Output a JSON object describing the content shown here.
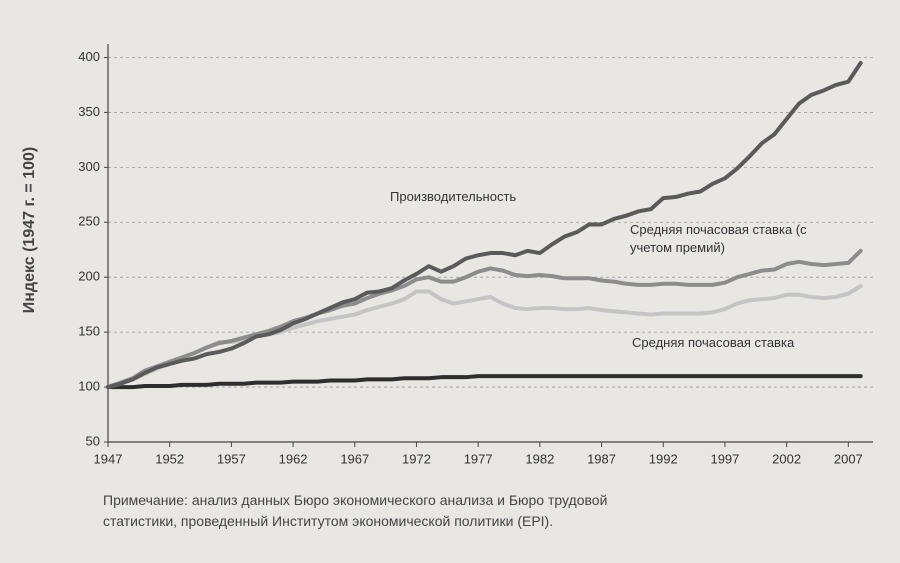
{
  "chart_data": {
    "type": "line",
    "ylabel": "Индекс (1947 г. = 100)",
    "x": [
      1947,
      1948,
      1949,
      1950,
      1951,
      1952,
      1953,
      1954,
      1955,
      1956,
      1957,
      1958,
      1959,
      1960,
      1961,
      1962,
      1963,
      1964,
      1965,
      1966,
      1967,
      1968,
      1969,
      1970,
      1971,
      1972,
      1973,
      1974,
      1975,
      1976,
      1977,
      1978,
      1979,
      1980,
      1981,
      1982,
      1983,
      1984,
      1985,
      1986,
      1987,
      1988,
      1989,
      1990,
      1991,
      1992,
      1993,
      1994,
      1995,
      1996,
      1997,
      1998,
      1999,
      2000,
      2001,
      2002,
      2003,
      2004,
      2005,
      2006,
      2007,
      2008
    ],
    "series": [
      {
        "name": "Производительность",
        "color": "#5a5a5a",
        "values": [
          100,
          103,
          107,
          113,
          118,
          121,
          124,
          126,
          130,
          132,
          135,
          140,
          146,
          148,
          152,
          158,
          162,
          167,
          172,
          177,
          180,
          186,
          187,
          190,
          197,
          203,
          210,
          205,
          210,
          217,
          220,
          222,
          222,
          220,
          224,
          222,
          230,
          237,
          241,
          248,
          248,
          253,
          256,
          260,
          262,
          272,
          273,
          276,
          278,
          285,
          290,
          299,
          310,
          322,
          330,
          344,
          358,
          366,
          370,
          375,
          378,
          395
        ]
      },
      {
        "name": "Средняя почасовая ставка (с учетом премий)",
        "color": "#8c8c8c",
        "values": [
          100,
          104,
          108,
          115,
          119,
          123,
          127,
          131,
          136,
          140,
          142,
          145,
          148,
          151,
          155,
          160,
          163,
          167,
          170,
          174,
          176,
          181,
          185,
          188,
          192,
          198,
          200,
          196,
          196,
          200,
          205,
          208,
          206,
          202,
          201,
          202,
          201,
          199,
          199,
          199,
          197,
          196,
          194,
          193,
          193,
          194,
          194,
          193,
          193,
          193,
          195,
          200,
          203,
          206,
          207,
          212,
          214,
          212,
          211,
          212,
          213,
          224
        ]
      },
      {
        "name": "Средняя почасовая ставка",
        "color": "#c4c4c4",
        "values": [
          100,
          103,
          107,
          112,
          117,
          121,
          127,
          131,
          136,
          141,
          141,
          143,
          147,
          148,
          150,
          154,
          157,
          160,
          162,
          164,
          166,
          170,
          173,
          176,
          180,
          187,
          187,
          180,
          176,
          178,
          180,
          182,
          176,
          172,
          171,
          172,
          172,
          171,
          171,
          172,
          170,
          169,
          168,
          167,
          166,
          167,
          167,
          167,
          167,
          168,
          171,
          176,
          179,
          180,
          181,
          184,
          184,
          182,
          181,
          182,
          185,
          192
        ]
      },
      {
        "color": "#2e2e2e",
        "values": [
          100,
          100,
          100,
          101,
          101,
          101,
          102,
          102,
          102,
          103,
          103,
          103,
          104,
          104,
          104,
          105,
          105,
          105,
          106,
          106,
          106,
          107,
          107,
          107,
          108,
          108,
          108,
          109,
          109,
          109,
          110,
          110,
          110,
          110,
          110,
          110,
          110,
          110,
          110,
          110,
          110,
          110,
          110,
          110,
          110,
          110,
          110,
          110,
          110,
          110,
          110,
          110,
          110,
          110,
          110,
          110,
          110,
          110,
          110,
          110,
          110,
          110
        ]
      }
    ],
    "xlim": [
      1947,
      2009
    ],
    "xticks": [
      1947,
      1952,
      1957,
      1962,
      1967,
      1972,
      1977,
      1982,
      1987,
      1992,
      1997,
      2002,
      2007
    ],
    "ylim": [
      50,
      405
    ],
    "yticks": [
      50,
      100,
      150,
      200,
      250,
      300,
      350,
      400
    ],
    "grid": true,
    "note": [
      "Примечание: анализ данных Бюро экономического анализа и Бюро трудовой",
      "статистики, проведенный Институтом экономической политики (EPI)."
    ]
  }
}
